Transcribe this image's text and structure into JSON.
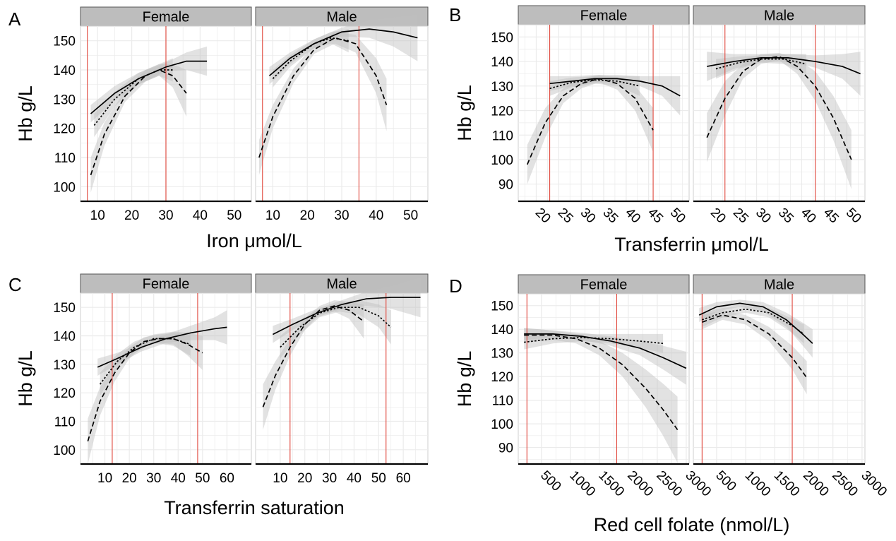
{
  "colors": {
    "strip_fill": "#bdbdbd",
    "grid": "#ebebeb",
    "ref_line": "#e0453a",
    "ribbon": "#bebebe",
    "curve": "#000000"
  },
  "chart_data": [
    {
      "panel_label": "A",
      "type": "line",
      "xlabel": "Iron μmol/L",
      "ylabel": "Hb g/L",
      "xlim": [
        5,
        55
      ],
      "ylim": [
        95,
        155
      ],
      "xticks": [
        10,
        20,
        30,
        40,
        50
      ],
      "yticks": [
        100,
        110,
        120,
        130,
        140,
        150
      ],
      "xtick_labels": [
        "10",
        "20",
        "30",
        "40",
        "50"
      ],
      "ytick_labels": [
        "100",
        "110",
        "120",
        "130",
        "140",
        "150"
      ],
      "rotate_x": false,
      "facets": [
        {
          "name": "Female",
          "ref_lines": [
            7,
            30
          ],
          "series": [
            {
              "linestyle": "solid",
              "x": [
                8,
                15,
                22,
                30,
                36,
                42
              ],
              "y": [
                125,
                132,
                137,
                141,
                143,
                143
              ],
              "band": [
                3,
                2.5,
                2,
                1.5,
                3,
                5
              ]
            },
            {
              "linestyle": "dotted",
              "x": [
                9,
                15,
                22,
                28,
                32
              ],
              "y": [
                121,
                130,
                137,
                140,
                140
              ],
              "band": [
                4,
                2.5,
                2,
                2,
                4
              ]
            },
            {
              "linestyle": "dashed",
              "x": [
                8,
                12,
                18,
                24,
                28,
                32,
                36
              ],
              "y": [
                104,
                118,
                131,
                138,
                140,
                138,
                132
              ],
              "band": [
                6,
                4,
                2,
                2,
                2,
                4,
                8
              ]
            }
          ]
        },
        {
          "name": "Male",
          "ref_lines": [
            7,
            35
          ],
          "series": [
            {
              "linestyle": "solid",
              "x": [
                9,
                15,
                22,
                30,
                38,
                45,
                52
              ],
              "y": [
                138,
                144,
                149,
                153,
                154,
                153,
                151
              ],
              "band": [
                3,
                2,
                1.5,
                1.5,
                3,
                5,
                8
              ]
            },
            {
              "linestyle": "dotted",
              "x": [
                10,
                15,
                22,
                27,
                32
              ],
              "y": [
                137,
                143,
                149,
                151,
                150
              ],
              "band": [
                3,
                2,
                1.5,
                2,
                4
              ]
            },
            {
              "linestyle": "dashed",
              "x": [
                6,
                10,
                16,
                22,
                28,
                34,
                40,
                43
              ],
              "y": [
                110,
                124,
                138,
                147,
                151,
                149,
                138,
                128
              ],
              "band": [
                6,
                4,
                2.5,
                1.5,
                2,
                3,
                6,
                9
              ]
            }
          ]
        }
      ]
    },
    {
      "panel_label": "B",
      "type": "line",
      "xlabel": "Transferrin μmol/L",
      "ylabel": "Hb g/L",
      "xlim": [
        16,
        54
      ],
      "ylim": [
        83,
        155
      ],
      "xticks": [
        20,
        25,
        30,
        35,
        40,
        45,
        50
      ],
      "yticks": [
        90,
        100,
        110,
        120,
        130,
        140,
        150
      ],
      "xtick_labels": [
        "20",
        "25",
        "30",
        "35",
        "40",
        "45",
        "50"
      ],
      "ytick_labels": [
        "90",
        "100",
        "110",
        "120",
        "130",
        "140",
        "150"
      ],
      "rotate_x": true,
      "facets": [
        {
          "name": "Female",
          "ref_lines": [
            23,
            46
          ],
          "series": [
            {
              "linestyle": "solid",
              "x": [
                23,
                28,
                33,
                38,
                43,
                48,
                52
              ],
              "y": [
                131,
                132,
                133,
                133,
                132,
                130,
                126
              ],
              "band": [
                3,
                2,
                1.5,
                1.5,
                2,
                4,
                8
              ]
            },
            {
              "linestyle": "dotted",
              "x": [
                23,
                28,
                33,
                38,
                43
              ],
              "y": [
                129,
                131.5,
                132.5,
                132,
                130
              ],
              "band": [
                3,
                2,
                1.5,
                2,
                4
              ]
            },
            {
              "linestyle": "dashed",
              "x": [
                18,
                22,
                26,
                30,
                34,
                38,
                42,
                46
              ],
              "y": [
                98,
                115,
                126,
                131,
                133,
                131,
                125,
                112
              ],
              "band": [
                8,
                6,
                3,
                2,
                1.5,
                2.5,
                5,
                9
              ]
            }
          ]
        },
        {
          "name": "Male",
          "ref_lines": [
            23,
            43
          ],
          "series": [
            {
              "linestyle": "solid",
              "x": [
                19,
                25,
                31,
                37,
                43,
                49,
                53
              ],
              "y": [
                138,
                140,
                141.5,
                141.5,
                140,
                138,
                135
              ],
              "band": [
                6,
                3,
                1.5,
                1.5,
                2.5,
                5,
                9
              ]
            },
            {
              "linestyle": "dotted",
              "x": [
                21,
                26,
                31,
                36,
                41
              ],
              "y": [
                137,
                139.5,
                141,
                141,
                139
              ],
              "band": [
                4,
                2.5,
                1.5,
                2,
                4
              ]
            },
            {
              "linestyle": "dashed",
              "x": [
                19,
                23,
                27,
                31,
                35,
                39,
                43,
                47,
                51
              ],
              "y": [
                109,
                125,
                136,
                141,
                142,
                138,
                130,
                117,
                100
              ],
              "band": [
                10,
                7,
                3,
                2,
                1.5,
                3,
                6,
                9,
                12
              ]
            }
          ]
        }
      ]
    },
    {
      "panel_label": "C",
      "type": "line",
      "xlabel": "Transferrin saturation",
      "ylabel": "Hb g/L",
      "xlim": [
        0,
        70
      ],
      "ylim": [
        95,
        155
      ],
      "xticks": [
        10,
        20,
        30,
        40,
        50,
        60
      ],
      "yticks": [
        100,
        110,
        120,
        130,
        140,
        150
      ],
      "xtick_labels": [
        "10",
        "20",
        "30",
        "40",
        "50",
        "60"
      ],
      "ytick_labels": [
        "100",
        "110",
        "120",
        "130",
        "140",
        "150"
      ],
      "rotate_x": false,
      "facets": [
        {
          "name": "Female",
          "ref_lines": [
            13,
            48
          ],
          "series": [
            {
              "linestyle": "solid",
              "x": [
                7,
                15,
                25,
                35,
                45,
                55,
                60
              ],
              "y": [
                129,
                132,
                136,
                139,
                141,
                142.5,
                143
              ],
              "band": [
                3,
                2,
                1.5,
                1.5,
                2.5,
                4,
                6
              ]
            },
            {
              "linestyle": "dotted",
              "x": [
                8,
                15,
                22,
                30,
                38,
                45
              ],
              "y": [
                123,
                131,
                136,
                139,
                139,
                137
              ],
              "band": [
                4,
                2.5,
                2,
                1.5,
                2.5,
                4
              ]
            },
            {
              "linestyle": "dashed",
              "x": [
                3,
                8,
                14,
                20,
                26,
                32,
                38,
                44,
                50
              ],
              "y": [
                103,
                117,
                127,
                134,
                138,
                139,
                139,
                137,
                134
              ],
              "band": [
                8,
                5,
                3,
                2,
                1.5,
                1.5,
                2,
                4,
                6
              ]
            }
          ]
        },
        {
          "name": "Male",
          "ref_lines": [
            14,
            53
          ],
          "series": [
            {
              "linestyle": "solid",
              "x": [
                7,
                15,
                25,
                35,
                45,
                55,
                67
              ],
              "y": [
                140.5,
                144,
                148,
                151,
                153,
                153.5,
                153.5
              ],
              "band": [
                3,
                2,
                1.5,
                1.5,
                2.5,
                4,
                7
              ]
            },
            {
              "linestyle": "dotted",
              "x": [
                10,
                18,
                26,
                34,
                42,
                50,
                55
              ],
              "y": [
                136,
                143,
                148,
                150,
                150,
                147,
                143
              ],
              "band": [
                4,
                2.5,
                1.5,
                1.5,
                2.5,
                4,
                6
              ]
            },
            {
              "linestyle": "dashed",
              "x": [
                3,
                8,
                14,
                20,
                26,
                32,
                38,
                44
              ],
              "y": [
                115,
                126,
                136,
                144,
                149,
                150.5,
                149,
                145
              ],
              "band": [
                8,
                5,
                3,
                2,
                1.5,
                2,
                3,
                6
              ]
            }
          ]
        }
      ]
    },
    {
      "panel_label": "D",
      "type": "line",
      "xlabel": "Red cell folate (nmol/L)",
      "ylabel": "Hb g/L",
      "xlim": [
        100,
        3050
      ],
      "ylim": [
        83,
        155
      ],
      "xticks": [
        500,
        1000,
        1500,
        2000,
        2500,
        3000
      ],
      "yticks": [
        90,
        100,
        110,
        120,
        130,
        140,
        150
      ],
      "xtick_labels": [
        "500",
        "1000",
        "1500",
        "2000",
        "2500",
        "3000"
      ],
      "ytick_labels": [
        "90",
        "100",
        "110",
        "120",
        "130",
        "140",
        "150"
      ],
      "rotate_x": true,
      "facets": [
        {
          "name": "Female",
          "ref_lines": [
            250,
            1800
          ],
          "series": [
            {
              "linestyle": "solid",
              "x": [
                200,
                700,
                1200,
                1700,
                2200,
                2600,
                3000
              ],
              "y": [
                138,
                138,
                137,
                135,
                132,
                128,
                123.5
              ],
              "band": [
                2.5,
                1.5,
                1.5,
                2,
                3,
                5,
                7
              ]
            },
            {
              "linestyle": "dotted",
              "x": [
                200,
                700,
                1200,
                1700,
                2200,
                2600
              ],
              "y": [
                134.5,
                136,
                136.5,
                136,
                135,
                134
              ],
              "band": [
                3,
                2,
                1.5,
                2,
                3,
                4
              ]
            },
            {
              "linestyle": "dashed",
              "x": [
                200,
                700,
                1100,
                1500,
                1900,
                2300,
                2600,
                2850
              ],
              "y": [
                137.5,
                137.5,
                136,
                132,
                125,
                115,
                106,
                97.5
              ],
              "band": [
                3,
                2,
                2,
                3,
                5,
                8,
                11,
                14
              ]
            }
          ]
        },
        {
          "name": "Male",
          "ref_lines": [
            250,
            1800
          ],
          "series": [
            {
              "linestyle": "solid",
              "x": [
                200,
                500,
                900,
                1300,
                1700,
                2000,
                2150
              ],
              "y": [
                146,
                149.5,
                151,
                149.5,
                144,
                137.5,
                134
              ],
              "band": [
                3,
                2,
                1.5,
                2,
                3,
                5,
                6
              ]
            },
            {
              "linestyle": "dotted",
              "x": [
                250,
                600,
                1000,
                1400,
                1800,
                2000
              ],
              "y": [
                144,
                147,
                148.5,
                147,
                141.5,
                138
              ],
              "band": [
                3,
                2,
                1.5,
                2,
                3,
                4
              ]
            },
            {
              "linestyle": "dashed",
              "x": [
                250,
                600,
                1000,
                1400,
                1800,
                2050
              ],
              "y": [
                143,
                146,
                144,
                138,
                128,
                119.5
              ],
              "band": [
                3,
                2,
                2,
                3,
                5,
                7
              ]
            }
          ]
        }
      ]
    }
  ]
}
